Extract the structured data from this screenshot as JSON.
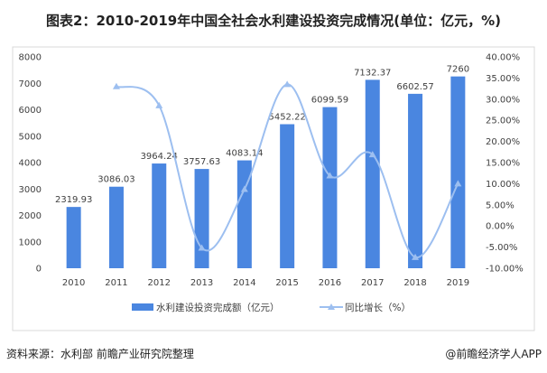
{
  "title": "图表2：2010-2019年中国全社会水利建设投资完成情况(单位：亿元，%)",
  "source": "资料来源：水利部 前瞻产业研究院整理",
  "credit": "@前瞻经济学人APP",
  "chart_data": {
    "type": "bar+line",
    "title": "图表2：2010-2019年中国全社会水利建设投资完成情况(单位：亿元，%)",
    "categories": [
      "2010",
      "2011",
      "2012",
      "2013",
      "2014",
      "2015",
      "2016",
      "2017",
      "2018",
      "2019"
    ],
    "series": [
      {
        "name": "水利建设投资完成额（亿元）",
        "type": "bar",
        "axis": "left",
        "color": "#4a86e0",
        "values": [
          2319.93,
          3086.03,
          3964.24,
          3757.63,
          4083.14,
          5452.22,
          6099.59,
          7132.37,
          6602.57,
          7260
        ],
        "labels": [
          "2319.93",
          "3086.03",
          "3964.24",
          "3757.63",
          "4083.14",
          "5452.22",
          "6099.59",
          "7132.37",
          "6602.57",
          "7260"
        ]
      },
      {
        "name": "同比增长（%）",
        "type": "line",
        "smooth": true,
        "marker": "triangle",
        "axis": "right",
        "color": "#9dbff0",
        "values": [
          null,
          33.0,
          28.5,
          -5.2,
          8.7,
          33.5,
          11.9,
          16.9,
          -7.4,
          10.0
        ]
      }
    ],
    "y_left": {
      "range": [
        0,
        8000
      ],
      "ticks": [
        "0",
        "1000",
        "2000",
        "3000",
        "4000",
        "5000",
        "6000",
        "7000",
        "8000"
      ]
    },
    "y_right": {
      "range": [
        -10,
        40
      ],
      "ticks": [
        "-10.00%",
        "-5.00%",
        "0.00%",
        "5.00%",
        "10.00%",
        "15.00%",
        "20.00%",
        "25.00%",
        "30.00%",
        "35.00%",
        "40.00%"
      ]
    },
    "grid": false,
    "legend": "bottom"
  }
}
